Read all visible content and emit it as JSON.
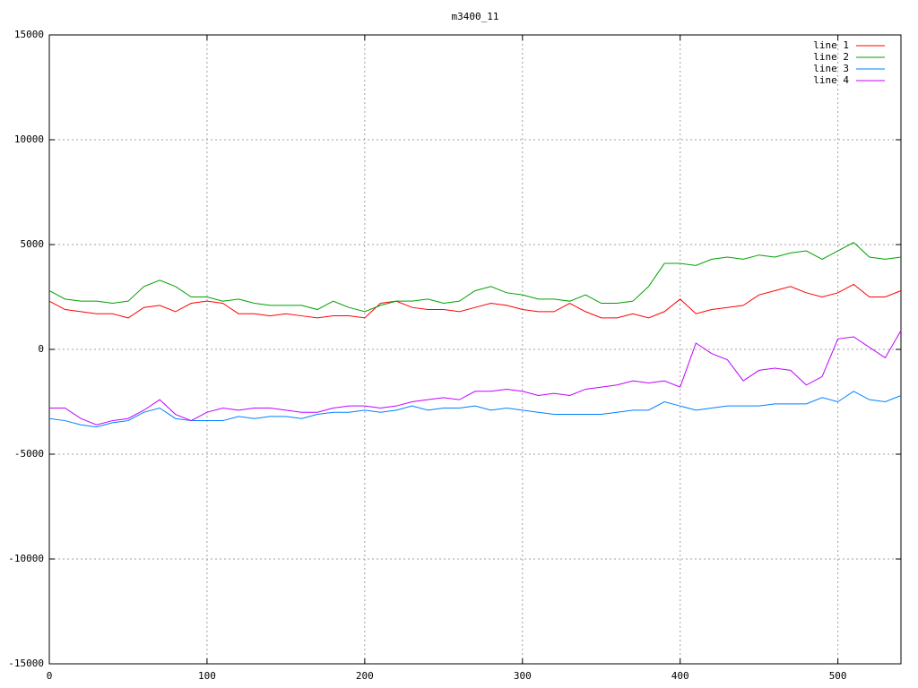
{
  "chart_data": {
    "type": "line",
    "title": "m3400_11",
    "x": [
      0,
      10,
      20,
      30,
      40,
      50,
      60,
      70,
      80,
      90,
      100,
      110,
      120,
      130,
      140,
      150,
      160,
      170,
      180,
      190,
      200,
      210,
      220,
      230,
      240,
      250,
      260,
      270,
      280,
      290,
      300,
      310,
      320,
      330,
      340,
      350,
      360,
      370,
      380,
      390,
      400,
      410,
      420,
      430,
      440,
      450,
      460,
      470,
      480,
      490,
      500,
      510,
      520,
      530,
      540
    ],
    "series": [
      {
        "name": "line 1",
        "color": "#ff0000",
        "values": [
          2300,
          1900,
          1800,
          1700,
          1700,
          1500,
          2000,
          2100,
          1800,
          2200,
          2300,
          2200,
          1700,
          1700,
          1600,
          1700,
          1600,
          1500,
          1600,
          1600,
          1500,
          2200,
          2300,
          2000,
          1900,
          1900,
          1800,
          2000,
          2200,
          2100,
          1900,
          1800,
          1800,
          2200,
          1800,
          1500,
          1500,
          1700,
          1500,
          1800,
          2400,
          1700,
          1900,
          2000,
          2100,
          2600,
          2800,
          3000,
          2700,
          2500,
          2700,
          3100,
          2500,
          2500,
          2800
        ]
      },
      {
        "name": "line 2",
        "color": "#00a000",
        "values": [
          2800,
          2400,
          2300,
          2300,
          2200,
          2300,
          3000,
          3300,
          3000,
          2500,
          2500,
          2300,
          2400,
          2200,
          2100,
          2100,
          2100,
          1900,
          2300,
          2000,
          1800,
          2100,
          2300,
          2300,
          2400,
          2200,
          2300,
          2800,
          3000,
          2700,
          2600,
          2400,
          2400,
          2300,
          2600,
          2200,
          2200,
          2300,
          3000,
          4100,
          4100,
          4000,
          4300,
          4400,
          4300,
          4500,
          4400,
          4600,
          4700,
          4300,
          4700,
          5100,
          4400,
          4300,
          4400
        ]
      },
      {
        "name": "line 3",
        "color": "#0080ff",
        "values": [
          -3300,
          -3400,
          -3600,
          -3700,
          -3500,
          -3400,
          -3000,
          -2800,
          -3300,
          -3400,
          -3400,
          -3400,
          -3200,
          -3300,
          -3200,
          -3200,
          -3300,
          -3100,
          -3000,
          -3000,
          -2900,
          -3000,
          -2900,
          -2700,
          -2900,
          -2800,
          -2800,
          -2700,
          -2900,
          -2800,
          -2900,
          -3000,
          -3100,
          -3100,
          -3100,
          -3100,
          -3000,
          -2900,
          -2900,
          -2500,
          -2700,
          -2900,
          -2800,
          -2700,
          -2700,
          -2700,
          -2600,
          -2600,
          -2600,
          -2300,
          -2500,
          -2000,
          -2400,
          -2500,
          -2200
        ]
      },
      {
        "name": "line 4",
        "color": "#c000ff",
        "values": [
          -2800,
          -2800,
          -3300,
          -3600,
          -3400,
          -3300,
          -2900,
          -2400,
          -3100,
          -3400,
          -3000,
          -2800,
          -2900,
          -2800,
          -2800,
          -2900,
          -3000,
          -3000,
          -2800,
          -2700,
          -2700,
          -2800,
          -2700,
          -2500,
          -2400,
          -2300,
          -2400,
          -2000,
          -2000,
          -1900,
          -2000,
          -2200,
          -2100,
          -2200,
          -1900,
          -1800,
          -1700,
          -1500,
          -1600,
          -1500,
          -1800,
          300,
          -200,
          -500,
          -1500,
          -1000,
          -900,
          -1000,
          -1700,
          -1300,
          500,
          600,
          100,
          -400,
          900
        ]
      }
    ],
    "xlim": [
      0,
      540
    ],
    "ylim": [
      -15000,
      15000
    ],
    "xticks": [
      0,
      100,
      200,
      300,
      400,
      500
    ],
    "yticks": [
      -15000,
      -10000,
      -5000,
      0,
      5000,
      10000,
      15000
    ],
    "grid": true,
    "legend": "top-right"
  }
}
